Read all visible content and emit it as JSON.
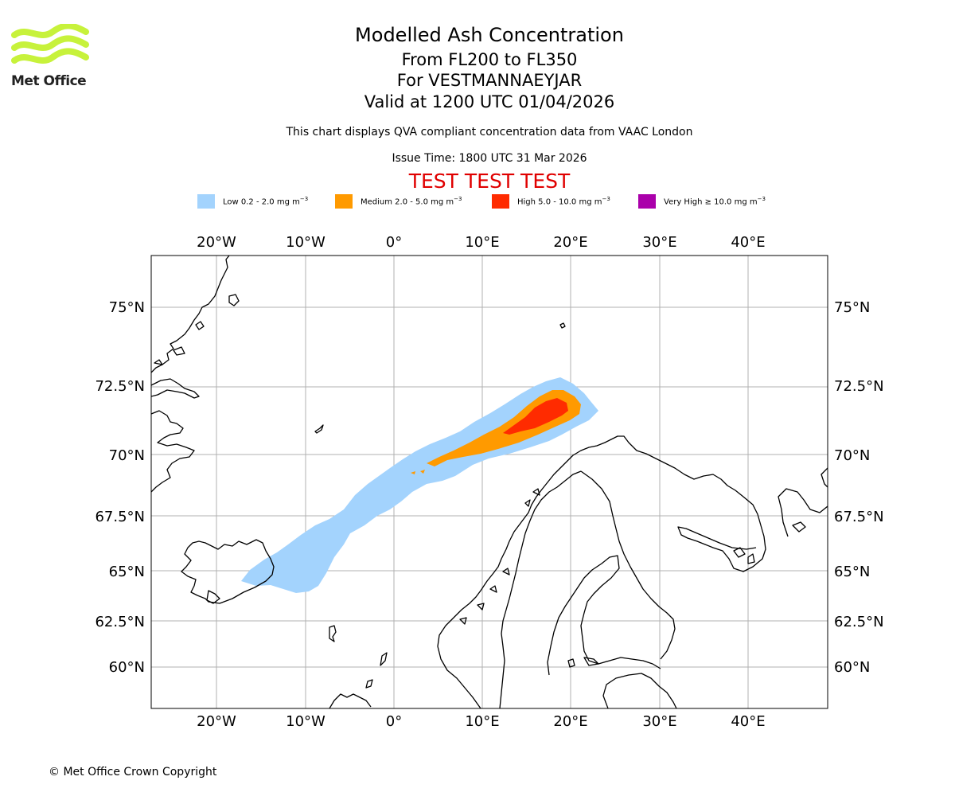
{
  "header": {
    "logo_text": "Met Office",
    "title": "Modelled Ash Concentration",
    "flight_levels": "From FL200 to FL350",
    "volcano": "For VESTMANNAEYJAR",
    "valid_time": "Valid at 1200 UTC 01/04/2026",
    "qva_note": "This chart displays QVA compliant concentration data from VAAC London",
    "issue_time": "Issue Time: 1800 UTC 31 Mar 2026",
    "test_banner": "TEST TEST TEST"
  },
  "legend": [
    {
      "label": "Low 0.2 - 2.0 mg m",
      "sup": "−3",
      "color": "#a3d3fd"
    },
    {
      "label": "Medium 2.0 - 5.0 mg m",
      "sup": "−3",
      "color": "#ff9a00"
    },
    {
      "label": "High 5.0 - 10.0 mg m",
      "sup": "−3",
      "color": "#ff2b00"
    },
    {
      "label": "Very High ≥ 10.0 mg m",
      "sup": "−3",
      "color": "#aa00aa"
    }
  ],
  "map": {
    "longitude_labels": [
      "20°W",
      "10°W",
      "0°",
      "10°E",
      "20°E",
      "30°E",
      "40°E"
    ],
    "latitude_labels": [
      "75°N",
      "72.5°N",
      "70°N",
      "67.5°N",
      "65°N",
      "62.5°N",
      "60°N"
    ],
    "colors": {
      "coast": "#000000",
      "grid": "#b0b0b0",
      "low": "#a3d3fd",
      "medium": "#ff9a00",
      "high": "#ff2b00"
    }
  },
  "footer": {
    "copyright": "© Met Office Crown Copyright"
  }
}
